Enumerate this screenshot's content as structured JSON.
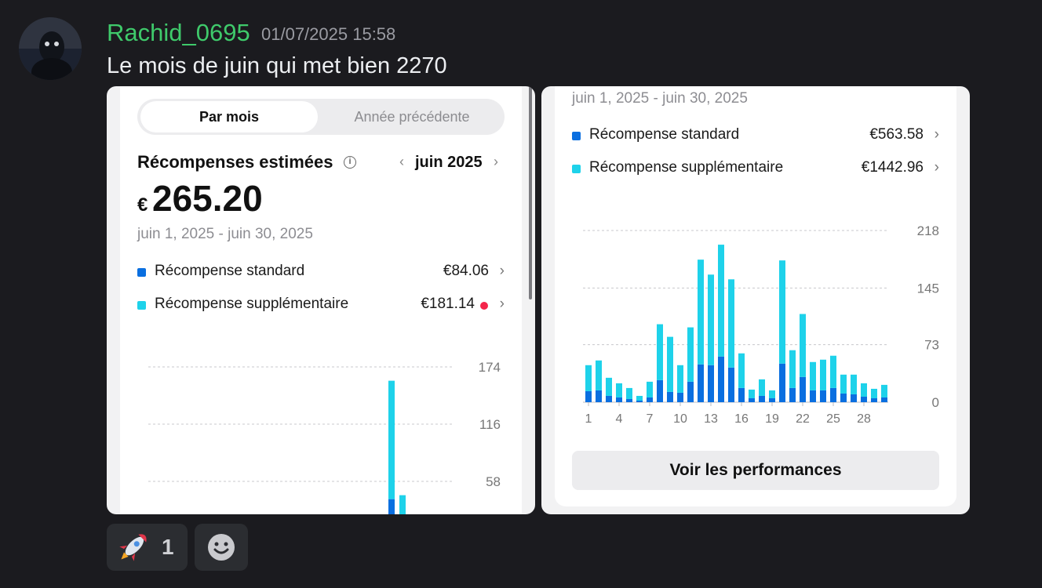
{
  "message": {
    "username": "Rachid_0695",
    "timestamp": "01/07/2025 15:58",
    "text": "Le mois de juin qui met bien 2270"
  },
  "card1": {
    "tabs": [
      "Par mois",
      "Année précédente"
    ],
    "title": "Récompenses estimées",
    "month": "juin 2025",
    "amount_currency": "€",
    "amount": "265.20",
    "range": "juin 1, 2025 - juin 30, 2025",
    "rows": [
      {
        "label": "Récompense standard",
        "value": "€84.06",
        "color": "#0a6fe0"
      },
      {
        "label": "Récompense supplémentaire",
        "value": "€181.14",
        "color": "#1ed2ea"
      }
    ],
    "chart_data": {
      "type": "bar",
      "y_ticks": [
        "174",
        "116",
        "58"
      ],
      "ylim": [
        0,
        174
      ],
      "stacked": true,
      "colors": {
        "standard": "#0a6fe0",
        "supplementaire": "#1ed2ea"
      },
      "visible_bars": [
        {
          "standard": 40,
          "total": 160
        },
        {
          "standard": 11,
          "total": 44
        }
      ]
    }
  },
  "card2": {
    "range": "juin 1, 2025 - juin 30, 2025",
    "rows": [
      {
        "label": "Récompense standard",
        "value": "€563.58",
        "color": "#0a6fe0"
      },
      {
        "label": "Récompense supplémentaire",
        "value": "€1442.96",
        "color": "#1ed2ea"
      }
    ],
    "button": "Voir les performances",
    "chart_data": {
      "type": "bar",
      "stacked": true,
      "y_ticks": [
        "218",
        "145",
        "73",
        "0"
      ],
      "ylim": [
        0,
        218
      ],
      "x_ticks": [
        "1",
        "4",
        "7",
        "10",
        "13",
        "16",
        "19",
        "22",
        "25",
        "28"
      ],
      "x": [
        1,
        2,
        3,
        4,
        5,
        6,
        7,
        8,
        9,
        10,
        11,
        12,
        13,
        14,
        15,
        16,
        17,
        18,
        19,
        20,
        21,
        22,
        23,
        24,
        25,
        26,
        27,
        28,
        29,
        30
      ],
      "series": [
        {
          "name": "Récompense standard",
          "color": "#0a6fe0",
          "values": [
            14,
            15,
            8,
            6,
            4,
            2,
            6,
            28,
            13,
            12,
            26,
            48,
            47,
            58,
            44,
            18,
            5,
            8,
            5,
            49,
            18,
            32,
            15,
            15,
            18,
            11,
            10,
            7,
            5,
            6
          ]
        },
        {
          "name": "Récompense supplémentaire",
          "color": "#1ed2ea",
          "values": [
            33,
            38,
            23,
            18,
            14,
            6,
            20,
            71,
            70,
            35,
            69,
            133,
            115,
            142,
            112,
            44,
            11,
            21,
            10,
            131,
            48,
            80,
            36,
            39,
            41,
            24,
            25,
            17,
            12,
            16
          ]
        }
      ]
    }
  },
  "reactions": [
    {
      "emoji": "🚀",
      "count": "1"
    },
    {
      "emoji": "☻",
      "count": ""
    }
  ]
}
